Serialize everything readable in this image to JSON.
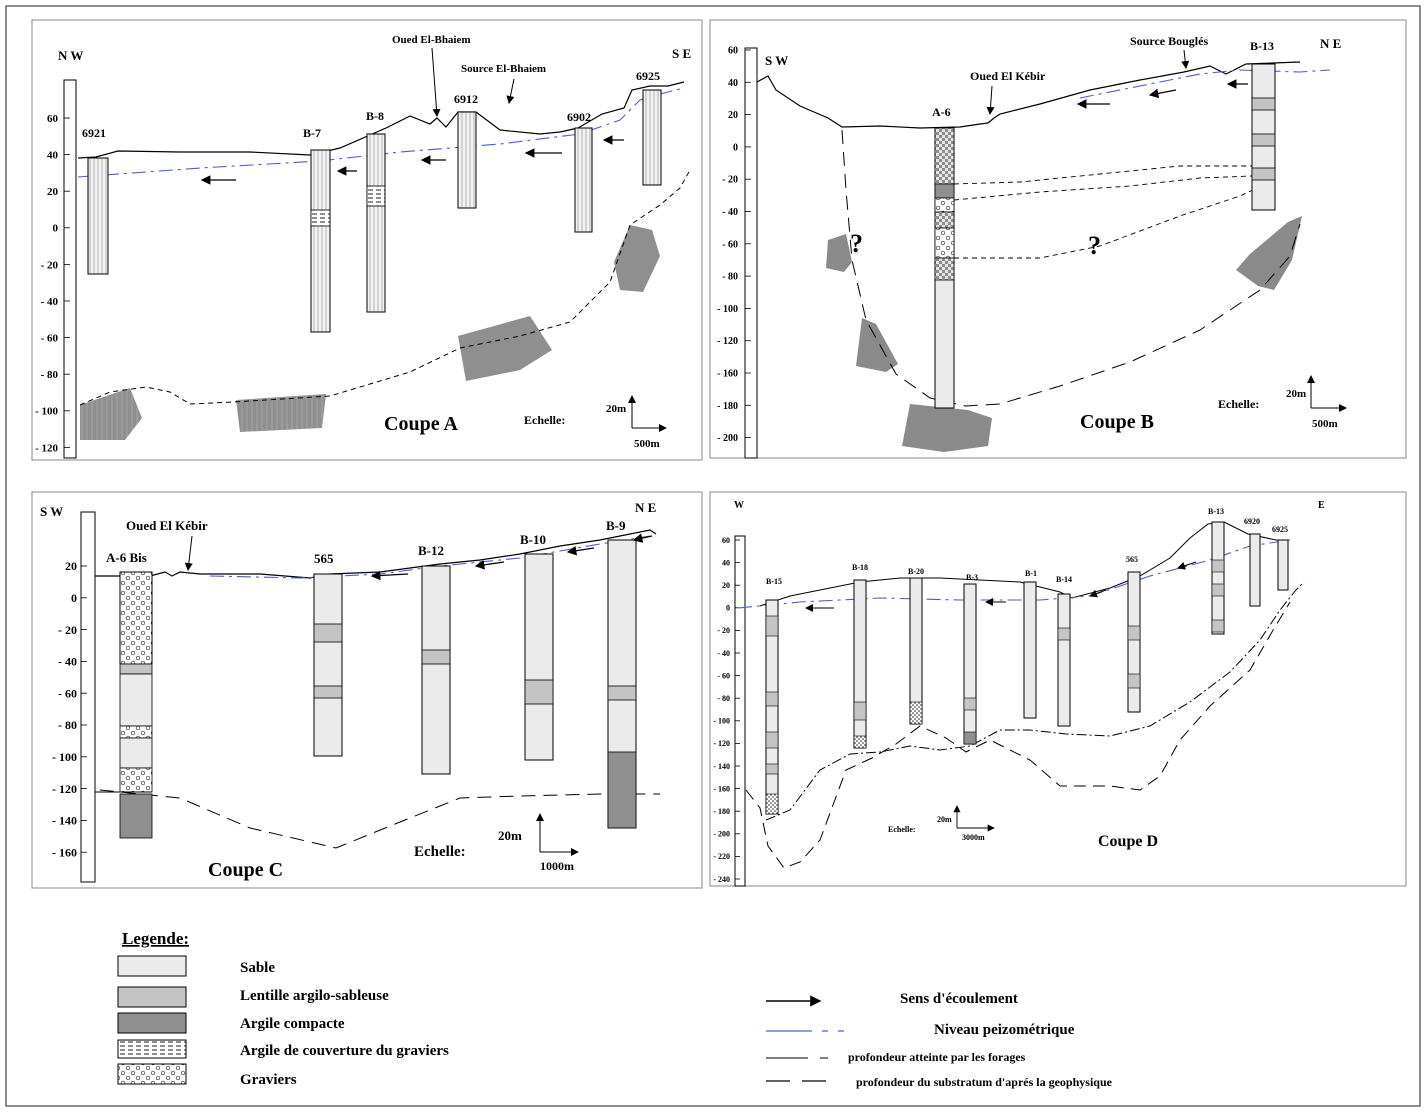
{
  "panels": {
    "A": {
      "title": "Coupe A",
      "dir_left": "N W",
      "dir_right": "S E",
      "scale_label": "Echelle:",
      "scale_v": "20m",
      "scale_h": "500m",
      "ticks": [
        "60",
        "40",
        "20",
        "0",
        "- 20",
        "- 40",
        "- 60",
        "- 80",
        "- 100",
        "- 120"
      ],
      "wells": [
        "6921",
        "B-7",
        "B-8",
        "6912",
        "6902",
        "6925"
      ],
      "annotations": [
        "Oued El-Bhaiem",
        "Source El-Bhaiem"
      ]
    },
    "B": {
      "title": "Coupe B",
      "dir_left": "S W",
      "dir_right": "N E",
      "scale_label": "Echelle:",
      "scale_v": "20m",
      "scale_h": "500m",
      "ticks": [
        "60",
        "40",
        "20",
        "0",
        "- 20",
        "- 40",
        "- 60",
        "- 80",
        "- 100",
        "- 120",
        "- 160",
        "- 180",
        "- 200"
      ],
      "wells": [
        "A-6",
        "B-13"
      ],
      "annotations": [
        "Oued El Kébir",
        "Source Bouglés"
      ],
      "question": "?"
    },
    "C": {
      "title": "Coupe C",
      "dir_left": "S W",
      "dir_right": "N E",
      "scale_label": "Echelle:",
      "scale_v": "20m",
      "scale_h": "1000m",
      "ticks": [
        "20",
        "0",
        "- 20",
        "- 40",
        "- 60",
        "- 80",
        "- 100",
        "- 120",
        "- 140",
        "- 160"
      ],
      "wells": [
        "A-6 Bis",
        "565",
        "B-12",
        "B-10",
        "B-9"
      ],
      "annotations": [
        "Oued El Kébir"
      ]
    },
    "D": {
      "title": "Coupe D",
      "dir_left": "W",
      "dir_right": "E",
      "scale_label": "Echelle:",
      "scale_v": "20m",
      "scale_h": "3000m",
      "ticks": [
        "60",
        "40",
        "20",
        "0",
        "- 20",
        "- 40",
        "- 60",
        "- 80",
        "- 100",
        "- 120",
        "- 140",
        "- 160",
        "- 180",
        "- 200",
        "- 220",
        "- 240"
      ],
      "wells": [
        "B-15",
        "B-18",
        "B-20",
        "B-3",
        "B-1",
        "B-14",
        "565",
        "B-13",
        "6920",
        "6925"
      ]
    }
  },
  "legend": {
    "title": "Legende:",
    "items": [
      "Sable",
      "Lentille argilo-sableuse",
      "Argile compacte",
      "Argile de couverture du graviers",
      "Graviers"
    ],
    "lines": [
      "Sens d'écoulement",
      "Niveau peizométrique",
      "profondeur atteinte par les forages",
      "profondeur du substratum d'aprés la geophysique"
    ]
  },
  "colors": {
    "sable": "#ebebeb",
    "lentille": "#c4c4c4",
    "argile": "#8f8f8f",
    "piezo": "#4b5fc8",
    "rock": "#8a8a8a"
  }
}
